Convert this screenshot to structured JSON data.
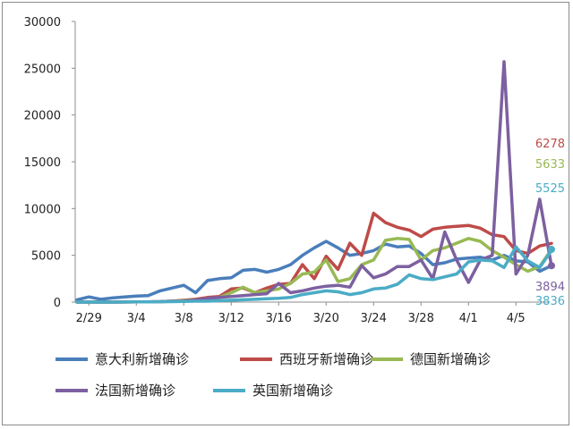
{
  "chart_data": {
    "type": "line",
    "title": "",
    "xlabel": "",
    "ylabel": "",
    "ylim": [
      0,
      30000
    ],
    "yticks": [
      0,
      5000,
      10000,
      15000,
      20000,
      25000,
      30000
    ],
    "y_tick_labels": [
      "0",
      "5000",
      "10000",
      "15000",
      "20000",
      "25000",
      "30000"
    ],
    "x": [
      "2/28",
      "2/29",
      "3/1",
      "3/2",
      "3/3",
      "3/4",
      "3/5",
      "3/6",
      "3/7",
      "3/8",
      "3/9",
      "3/10",
      "3/11",
      "3/12",
      "3/13",
      "3/14",
      "3/15",
      "3/16",
      "3/17",
      "3/18",
      "3/19",
      "3/20",
      "3/21",
      "3/22",
      "3/23",
      "3/24",
      "3/25",
      "3/26",
      "3/27",
      "3/28",
      "3/29",
      "3/30",
      "3/31",
      "4/1",
      "4/2",
      "4/3",
      "4/4",
      "4/5",
      "4/6",
      "4/7",
      "4/8"
    ],
    "x_tick_labels": [
      "2/29",
      "3/4",
      "3/8",
      "3/12",
      "3/16",
      "3/20",
      "3/24",
      "3/28",
      "4/1",
      "4/5"
    ],
    "grid": false,
    "legend_position": "bottom",
    "series": [
      {
        "name": "意大利新增确诊",
        "color": "#4a7ebb",
        "values": [
          250,
          550,
          300,
          450,
          550,
          650,
          700,
          1200,
          1500,
          1800,
          1000,
          2300,
          2500,
          2600,
          3400,
          3500,
          3200,
          3500,
          4000,
          5000,
          5800,
          6500,
          5800,
          5000,
          5200,
          5500,
          6200,
          5900,
          6000,
          5200,
          4000,
          4200,
          4600,
          4700,
          4800,
          4500,
          5000,
          4400,
          4300,
          3300,
          3894
        ]
      },
      {
        "name": "西班牙新增确诊",
        "color": "#be4b48",
        "values": [
          0,
          0,
          0,
          0,
          10,
          20,
          30,
          50,
          100,
          200,
          300,
          500,
          600,
          1400,
          1500,
          1000,
          1500,
          1900,
          2000,
          4000,
          2500,
          4900,
          3500,
          6300,
          5000,
          9500,
          8500,
          8000,
          7700,
          7000,
          7800,
          8000,
          8100,
          8200,
          7900,
          7200,
          7000,
          5500,
          5200,
          6000,
          6278
        ]
      },
      {
        "name": "德国新增确诊",
        "color": "#98b954",
        "values": [
          0,
          0,
          0,
          0,
          10,
          20,
          30,
          50,
          100,
          150,
          200,
          300,
          500,
          1000,
          1600,
          1000,
          1200,
          1400,
          2000,
          3000,
          3200,
          4500,
          2200,
          2500,
          4000,
          4500,
          6600,
          6800,
          6700,
          4500,
          5500,
          5800,
          6300,
          6800,
          6500,
          5500,
          4800,
          4000,
          3300,
          3800,
          5633
        ]
      },
      {
        "name": "法国新增确诊",
        "color": "#7d60a0",
        "values": [
          0,
          0,
          0,
          0,
          10,
          20,
          30,
          50,
          100,
          100,
          200,
          400,
          500,
          600,
          700,
          800,
          900,
          2000,
          1000,
          1200,
          1500,
          1700,
          1800,
          1600,
          3900,
          2600,
          3000,
          3800,
          3800,
          4500,
          2500,
          7500,
          4500,
          2100,
          4500,
          5000,
          25700,
          3000,
          5000,
          11000,
          3836
        ]
      },
      {
        "name": "英国新增确诊",
        "color": "#4bacc6",
        "values": [
          0,
          0,
          0,
          0,
          10,
          20,
          30,
          40,
          50,
          70,
          100,
          100,
          150,
          200,
          250,
          300,
          350,
          400,
          500,
          800,
          1000,
          1200,
          1100,
          800,
          1000,
          1400,
          1500,
          1900,
          2900,
          2500,
          2400,
          2700,
          3000,
          4300,
          4500,
          4400,
          3700,
          5900,
          4400,
          3700,
          5525
        ]
      }
    ],
    "end_labels": [
      {
        "text": "6278",
        "color": "#be4b48",
        "series": 1,
        "value": 6278
      },
      {
        "text": "5633",
        "color": "#98b954",
        "series": 2,
        "value": 5633
      },
      {
        "text": "5525",
        "color": "#4bacc6",
        "series": 4,
        "value": 5525
      },
      {
        "text": "3894",
        "color": "#7d60a0",
        "series": 0,
        "value": 3894
      },
      {
        "text": "3836",
        "color": "#4bacc6",
        "series": 3,
        "value": 3836
      }
    ],
    "end_markers": [
      {
        "series": 0,
        "value": 3894,
        "color": "#7d60a0"
      },
      {
        "series": 2,
        "value": 5633,
        "color": "#4bacc6"
      }
    ]
  }
}
